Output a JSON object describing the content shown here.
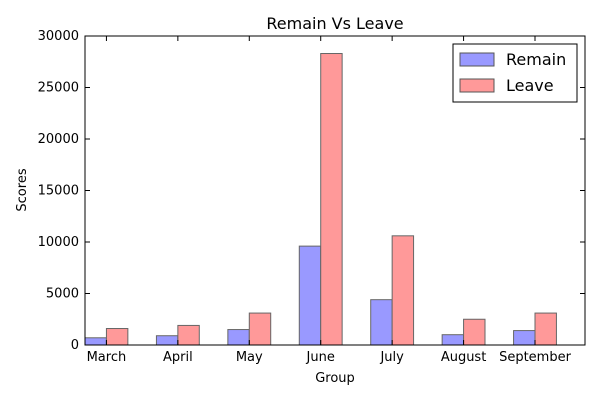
{
  "chart_data": {
    "type": "bar",
    "title": "Remain Vs Leave",
    "xlabel": "Group",
    "ylabel": "Scores",
    "categories": [
      "March",
      "April",
      "May",
      "June",
      "July",
      "August",
      "September"
    ],
    "series": [
      {
        "name": "Remain",
        "color": "#9999ff",
        "values": [
          700,
          900,
          1500,
          9600,
          4400,
          1000,
          1400
        ]
      },
      {
        "name": "Leave",
        "color": "#ff9999",
        "values": [
          1600,
          1900,
          3100,
          28300,
          10600,
          2500,
          3100
        ]
      }
    ],
    "ylim": [
      0,
      30000
    ],
    "yticks": [
      0,
      5000,
      10000,
      15000,
      20000,
      25000,
      30000
    ],
    "grid": false,
    "legend_position": "top-right"
  }
}
